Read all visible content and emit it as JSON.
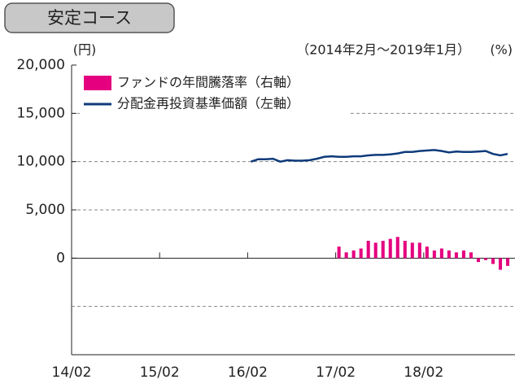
{
  "chart_data": {
    "type": "bar-line",
    "title": "安定コース",
    "y_label": "(円)",
    "subtitle": "（2014年2月～2019年1月）",
    "y2_label": "(%)",
    "categories": [
      "14/02",
      null,
      null,
      null,
      null,
      null,
      null,
      null,
      null,
      null,
      null,
      null,
      "15/02",
      null,
      null,
      null,
      null,
      null,
      null,
      null,
      null,
      null,
      null,
      null,
      "16/02",
      null,
      null,
      null,
      null,
      null,
      null,
      null,
      null,
      null,
      null,
      null,
      "17/02",
      null,
      null,
      null,
      null,
      null,
      null,
      null,
      null,
      null,
      null,
      null,
      "18/02",
      null,
      null,
      null,
      null,
      null,
      null,
      null,
      null,
      null,
      null,
      null
    ],
    "ylim": [
      -10000,
      20000
    ],
    "yticks": [
      {
        "value": 20000,
        "label": "20,000"
      },
      {
        "value": 15000,
        "label": "15,000"
      },
      {
        "value": 10000,
        "label": "10,000"
      },
      {
        "value": 5000,
        "label": "5,000"
      },
      0
    ],
    "ygrid": [
      15000,
      10000,
      5000,
      -5000
    ],
    "y2lim": [
      -50,
      100
    ],
    "series": [
      {
        "name": "ファンドの年間騰落率（右軸）",
        "color": "#e4007f",
        "kind": "bar",
        "axis": "y2",
        "values": [
          null,
          null,
          null,
          null,
          null,
          null,
          null,
          null,
          null,
          null,
          null,
          null,
          null,
          null,
          null,
          null,
          null,
          null,
          null,
          null,
          null,
          null,
          null,
          null,
          null,
          null,
          null,
          null,
          null,
          null,
          null,
          null,
          null,
          null,
          null,
          null,
          6,
          3,
          4,
          5,
          9,
          8,
          9,
          10,
          11,
          9,
          8,
          8,
          6,
          4,
          5,
          4,
          3,
          4,
          3,
          -2,
          -1,
          -3,
          -6,
          -4
        ]
      },
      {
        "name": "分配金再投資基準価額（左軸）",
        "color": "#0d3a7a",
        "kind": "line",
        "values": [
          null,
          null,
          null,
          null,
          null,
          null,
          null,
          null,
          null,
          null,
          null,
          null,
          null,
          null,
          null,
          null,
          null,
          null,
          null,
          null,
          null,
          null,
          null,
          null,
          10000,
          10250,
          10250,
          10300,
          10000,
          10150,
          10100,
          10100,
          10150,
          10300,
          10500,
          10550,
          10500,
          10500,
          10550,
          10550,
          10650,
          10700,
          10700,
          10750,
          10850,
          11000,
          11000,
          11100,
          11150,
          11200,
          11100,
          10950,
          11050,
          11000,
          11000,
          11050,
          11100,
          10800,
          10650,
          10800
        ]
      }
    ]
  }
}
